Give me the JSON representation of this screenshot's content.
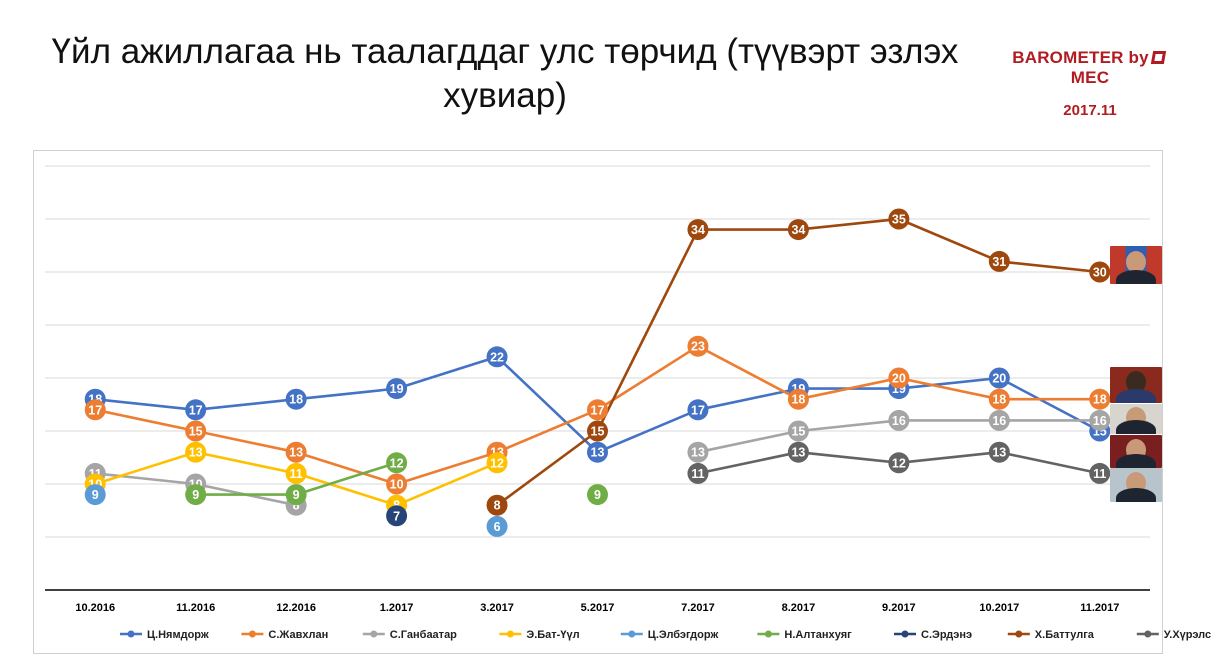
{
  "header": {
    "title": "Үйл ажиллагаа нь таалагддаг улс төрчид (түүвэрт эзлэх хувиар)",
    "brand": "BAROMETER by",
    "brand_suffix": "MEC",
    "date": "2017.11"
  },
  "colors": {
    "axis": "#000000",
    "grid": "#d9d9d9",
    "brand": "#b01c22"
  },
  "chart_data": {
    "type": "line",
    "title": "Үйл ажиллагаа нь таалагддаг улс төрчид (түүвэрт эзлэх хувиар)",
    "xlabel": "",
    "ylabel": "",
    "ylim": [
      0,
      40
    ],
    "grid": true,
    "legend_position": "bottom",
    "categories": [
      "10.2016",
      "11.2016",
      "12.2016",
      "1.2017",
      "3.2017",
      "5.2017",
      "7.2017",
      "8.2017",
      "9.2017",
      "10.2017",
      "11.2017"
    ],
    "series": [
      {
        "name": "Ц.Нямдорж",
        "color": "#4472c4",
        "values": [
          18,
          17,
          18,
          19,
          22,
          13,
          17,
          19,
          19,
          20,
          15
        ]
      },
      {
        "name": "С.Жавхлан",
        "color": "#ed7d31",
        "values": [
          17,
          15,
          13,
          10,
          13,
          17,
          23,
          18,
          20,
          18,
          18
        ]
      },
      {
        "name": "С.Ганбаатар",
        "color": "#a5a5a5",
        "values": [
          11,
          10,
          8,
          null,
          null,
          null,
          13,
          15,
          16,
          16,
          16
        ]
      },
      {
        "name": "Э.Бат-Үүл",
        "color": "#ffc000",
        "values": [
          10,
          13,
          11,
          8,
          12,
          null,
          null,
          null,
          null,
          null,
          null
        ]
      },
      {
        "name": "Ц.Элбэгдорж",
        "color": "#5b9bd5",
        "values": [
          9,
          null,
          null,
          null,
          6,
          null,
          null,
          null,
          null,
          null,
          null
        ]
      },
      {
        "name": "Н.Алтанхуяг",
        "color": "#70ad47",
        "values": [
          null,
          9,
          9,
          12,
          null,
          9,
          null,
          null,
          null,
          null,
          null
        ]
      },
      {
        "name": "С.Эрдэнэ",
        "color": "#264478",
        "values": [
          null,
          null,
          null,
          7,
          null,
          null,
          null,
          null,
          null,
          null,
          null
        ]
      },
      {
        "name": "Х.Баттулга",
        "color": "#9e480e",
        "values": [
          null,
          null,
          null,
          null,
          8,
          15,
          34,
          34,
          35,
          31,
          30
        ]
      },
      {
        "name": "У.Хүрэлсүх",
        "color": "#636363",
        "values": [
          null,
          null,
          null,
          null,
          null,
          null,
          11,
          13,
          12,
          13,
          11
        ]
      }
    ]
  },
  "portraits": [
    {
      "name": "baattulga-photo"
    },
    {
      "name": "javkhlan-photo"
    },
    {
      "name": "nyamdorj-photo"
    },
    {
      "name": "ganbaatar-photo"
    },
    {
      "name": "khurelsukh-photo"
    }
  ]
}
